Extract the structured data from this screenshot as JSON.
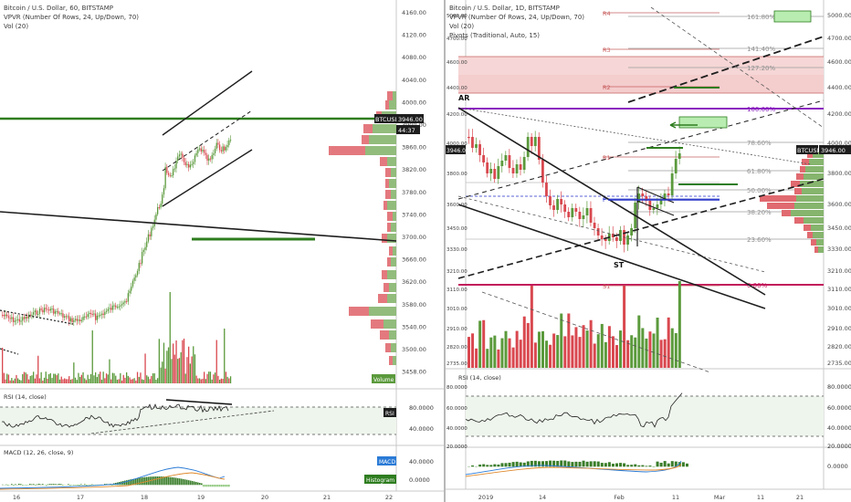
{
  "left": {
    "legend": [
      "Bitcoin / U.S. Dollar, 60, BITSTAMP",
      "VPVR (Number Of Rows, 24, Up/Down, 70)",
      "Vol (20)"
    ],
    "price_ticks": [
      "4160.00",
      "4120.00",
      "4080.00",
      "4040.00",
      "4000.00",
      "3900.00",
      "3860.00",
      "3820.00",
      "3780.00",
      "3740.00",
      "3700.00",
      "3660.00",
      "3620.00",
      "3580.00",
      "3540.00",
      "3500.00",
      "3458.00"
    ],
    "badge_price": "3946.00",
    "badge_symbol": "BTCUSD",
    "badge_timer": "44:37",
    "volume_tag": "Volume",
    "rsi_label": "RSI (14, close)",
    "rsi_ticks": [
      "80.0000",
      "40.0000"
    ],
    "rsi_tag": "RSI",
    "macd_label": "MACD (12, 26, close, 9)",
    "macd_ticks": [
      "40.0000",
      "0.0000"
    ],
    "macd_tag": "MACD",
    "hist_tag": "Histogram",
    "time_ticks": [
      "16",
      "17",
      "18",
      "19",
      "20",
      "21",
      "22"
    ]
  },
  "right": {
    "legend": [
      "Bitcoin / U.S. Dollar, 1D, BITSTAMP",
      "VPVR (Number Of Rows, 24, Up/Down, 70)",
      "Vol (20)",
      "Pivots (Traditional, Auto, 15)"
    ],
    "price_ticks": [
      "5000.00",
      "4700.00",
      "4600.00",
      "4400.00",
      "4200.00",
      "4000.00",
      "3800.00",
      "3600.00",
      "3450.00",
      "3330.00",
      "3210.00",
      "3110.00",
      "3010.00",
      "2910.00",
      "2820.00",
      "2735.00"
    ],
    "badge_symbol": "BTCUSD",
    "badge_price": "3946.00",
    "left_price": "3946.00",
    "fib_labels": [
      "161.80%",
      "141.40%",
      "127.20%",
      "100.00%",
      "78.60%",
      "61.80%",
      "50.00%",
      "38.20%",
      "23.60%",
      "0.00%"
    ],
    "pivot_labels": [
      "R4",
      "R3",
      "R2",
      "R1",
      "P",
      "S1"
    ],
    "annotations": [
      "AR",
      "ST"
    ],
    "rsi_label": "RSI (14, close)",
    "rsi_ticks": [
      "80.0000",
      "60.0000",
      "40.0000",
      "20.0000"
    ],
    "macd_ticks": [
      "0.0000"
    ],
    "time_ticks": [
      "2019",
      "14",
      "Feb",
      "11",
      "Mar",
      "11",
      "21"
    ]
  },
  "colors": {
    "up": "#5b9a3c",
    "down": "#d9484f",
    "trend": "#1e1e1e",
    "fib": "#a0a0a0",
    "blue": "#2634c9",
    "pink": "#c2185b"
  }
}
